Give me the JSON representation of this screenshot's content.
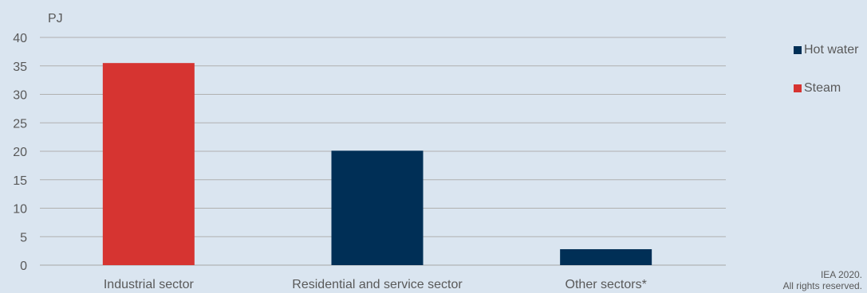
{
  "chart_data": {
    "type": "bar",
    "unit_label": "PJ",
    "categories": [
      "Industrial sector",
      "Residential and service sector",
      "Other sectors*"
    ],
    "series": [
      {
        "name": "Hot water",
        "color": "#002f56",
        "values": [
          0,
          20.1,
          2.8
        ]
      },
      {
        "name": "Steam",
        "color": "#d63431",
        "values": [
          35.5,
          0,
          0
        ]
      }
    ],
    "ylim": [
      0,
      40
    ],
    "yticks": [
      0,
      5,
      10,
      15,
      20,
      25,
      30,
      35,
      40
    ],
    "grid": true,
    "legend_position": "right"
  },
  "credit": {
    "line1": "IEA 2020.",
    "line2": "All rights reserved."
  }
}
